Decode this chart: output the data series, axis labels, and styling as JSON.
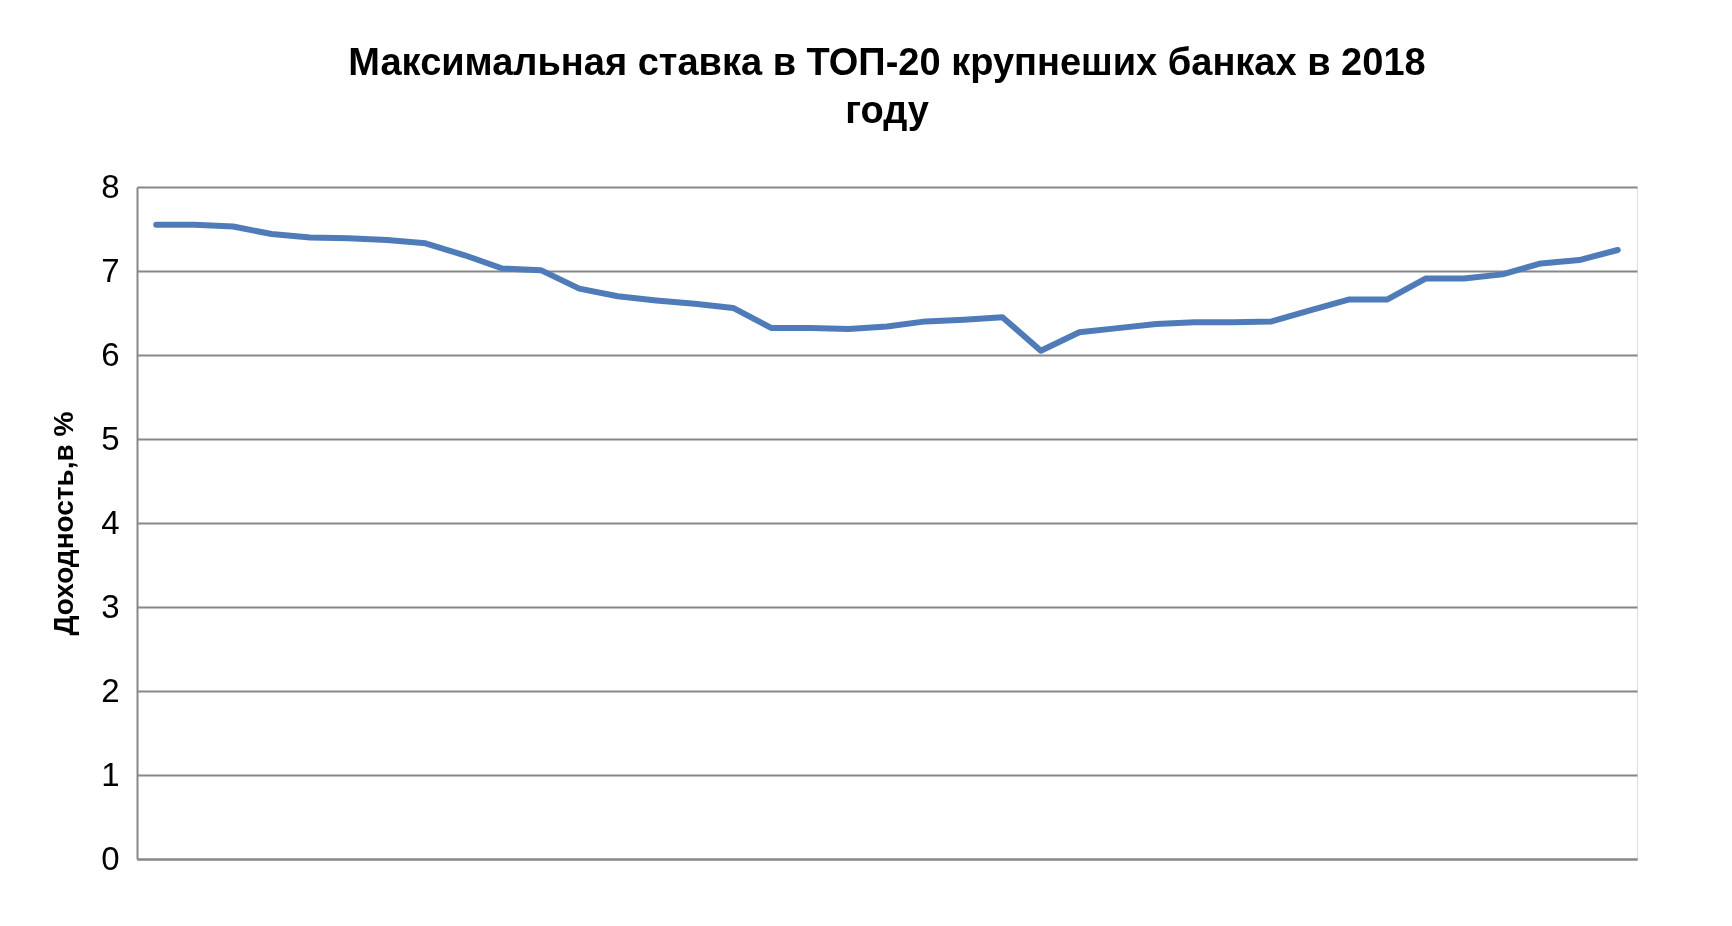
{
  "chart_data": {
    "type": "line",
    "title": "Максимальная ставка в ТОП-20 крупнеших банках в 2018 году",
    "ylabel": "Доходность,в %",
    "categories": [
      null,
      null,
      null,
      null,
      null,
      null,
      null,
      null,
      null,
      null,
      null,
      null,
      null,
      null,
      null,
      null,
      null,
      null,
      null,
      null,
      null,
      null,
      null,
      null,
      null,
      null,
      null,
      null,
      null,
      null,
      null,
      null,
      null,
      null,
      null,
      null,
      null,
      null,
      null
    ],
    "series": [
      {
        "color": "#4f7cb8",
        "values": [
          7.55,
          7.55,
          7.53,
          7.44,
          7.4,
          7.39,
          7.37,
          7.33,
          7.19,
          7.03,
          7.01,
          6.79,
          6.7,
          6.65,
          6.61,
          6.56,
          6.32,
          6.32,
          6.31,
          6.34,
          6.4,
          6.42,
          6.45,
          6.05,
          6.27,
          6.32,
          6.37,
          6.39,
          6.39,
          6.4,
          6.53,
          6.66,
          6.66,
          6.91,
          6.91,
          6.96,
          7.09,
          7.13,
          7.25
        ]
      }
    ],
    "ylim": [
      0,
      8
    ],
    "yticks": [
      0,
      1,
      2,
      3,
      4,
      5,
      6,
      7,
      8
    ],
    "grid": "y",
    "tick_labels": "y",
    "marker": "none",
    "line_style": "solid"
  }
}
